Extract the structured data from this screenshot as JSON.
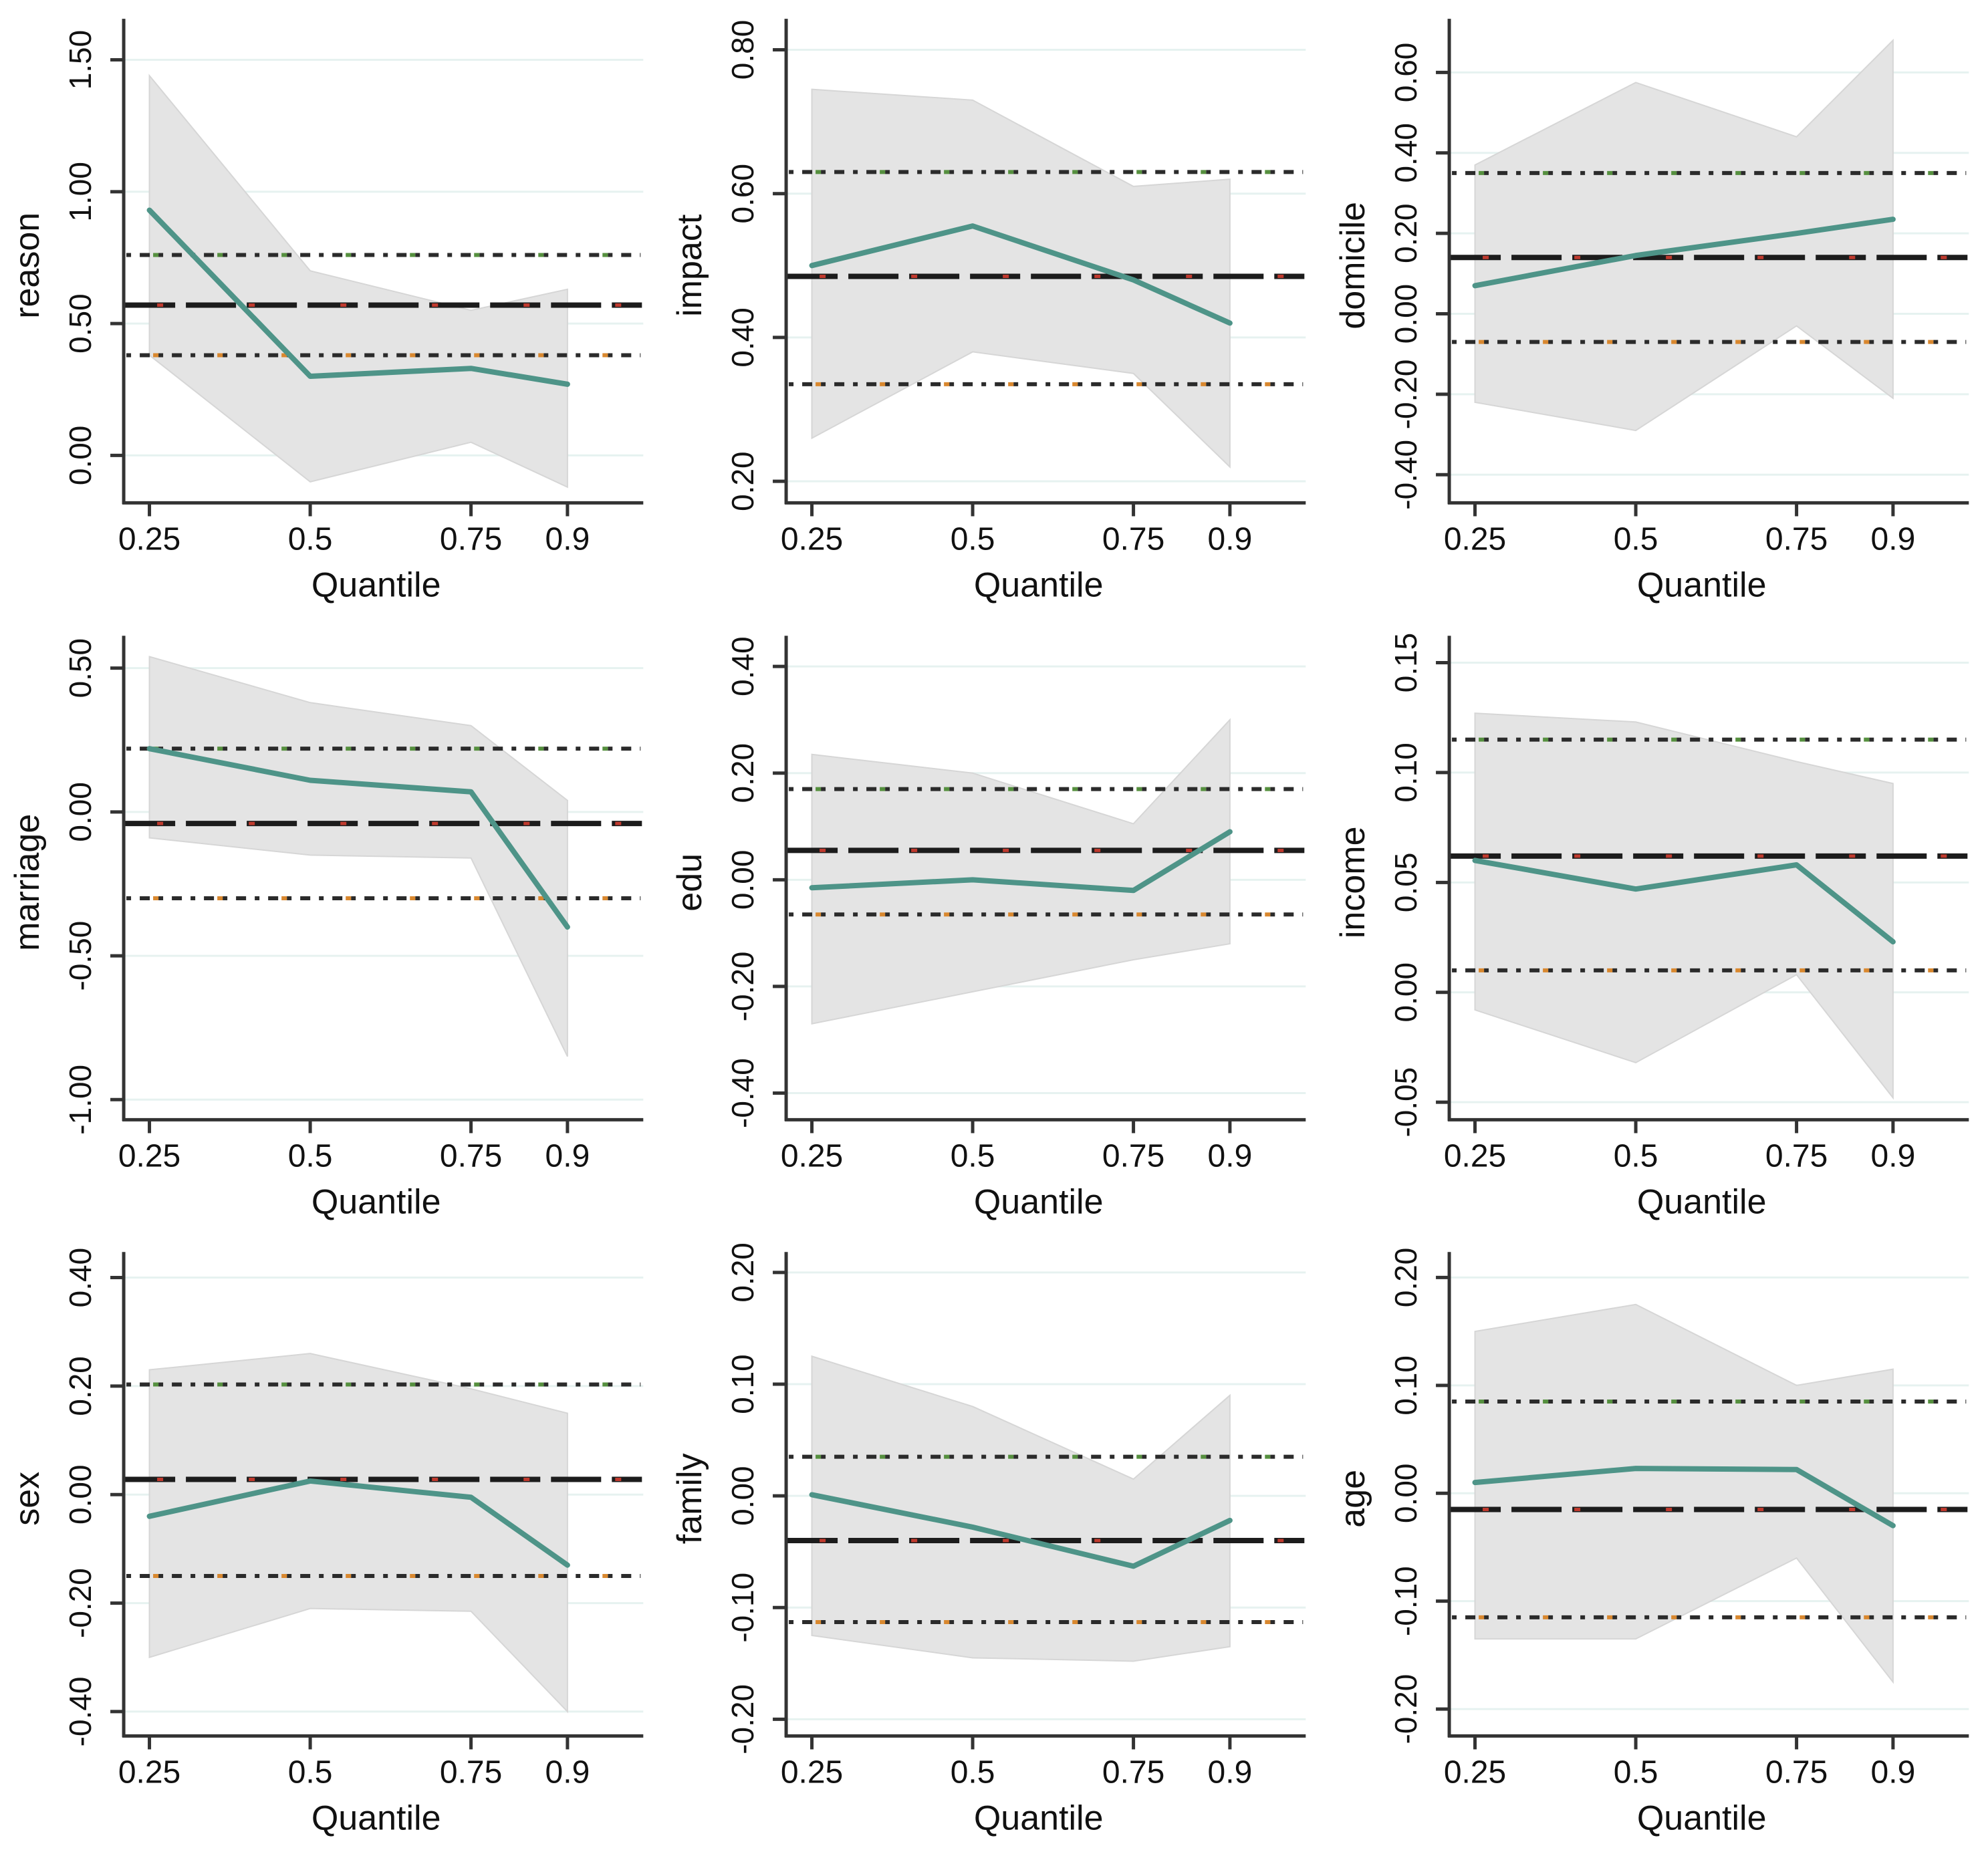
{
  "figure": {
    "kind": "3x3 grid of quantile regression coefficient plots",
    "grid_rows": 3,
    "grid_cols": 3
  },
  "styles": {
    "estimate_line_color": "#4e9488",
    "band_fill": "#e4e4e4",
    "band_stroke": "#d6d6d6",
    "ols_line_color": "#1c1c1c",
    "ols_accent_color": "#c03a2e",
    "ci_dot_color": "#2b2b2b",
    "ci_upper_accent_color": "#56903f",
    "ci_lower_accent_color": "#d9882f",
    "grid_color": "#e6f2f0",
    "axis_color": "#333333",
    "text_color": "#111111"
  },
  "chart_data": [
    {
      "type": "line",
      "ylabel": "reason",
      "xlabel": "Quantile",
      "x": [
        0.25,
        0.5,
        0.75,
        0.9
      ],
      "x_tick_labels": [
        "0.25",
        "0.5",
        "0.75",
        "0.9"
      ],
      "xlim": [
        0.21,
        0.995
      ],
      "y_ticks": [
        0.0,
        0.5,
        1.0,
        1.5
      ],
      "y_tick_labels": [
        "0.00",
        "0.50",
        "1.00",
        "1.50"
      ],
      "ylim": [
        -0.18,
        1.62
      ],
      "series": [
        {
          "name": "quantile_estimate",
          "values": [
            0.93,
            0.3,
            0.33,
            0.27
          ]
        }
      ],
      "confidence_band": {
        "lower": [
          0.38,
          -0.1,
          0.05,
          -0.12
        ],
        "upper": [
          1.44,
          0.7,
          0.55,
          0.63
        ]
      },
      "ols_estimate": 0.57,
      "ols_ci": [
        0.38,
        0.76
      ],
      "grid": true,
      "legend": "none"
    },
    {
      "type": "line",
      "ylabel": "impact",
      "xlabel": "Quantile",
      "x": [
        0.25,
        0.5,
        0.75,
        0.9
      ],
      "x_tick_labels": [
        "0.25",
        "0.5",
        "0.75",
        "0.9"
      ],
      "xlim": [
        0.21,
        0.995
      ],
      "y_ticks": [
        0.2,
        0.4,
        0.6,
        0.8
      ],
      "y_tick_labels": [
        "0.20",
        "0.40",
        "0.60",
        "0.80"
      ],
      "ylim": [
        0.17,
        0.83
      ],
      "series": [
        {
          "name": "quantile_estimate",
          "values": [
            0.5,
            0.555,
            0.48,
            0.42
          ]
        }
      ],
      "confidence_band": {
        "lower": [
          0.26,
          0.38,
          0.35,
          0.22
        ],
        "upper": [
          0.745,
          0.73,
          0.61,
          0.62
        ]
      },
      "ols_estimate": 0.485,
      "ols_ci": [
        0.335,
        0.63
      ],
      "grid": true,
      "legend": "none"
    },
    {
      "type": "line",
      "ylabel": "domicile",
      "xlabel": "Quantile",
      "x": [
        0.25,
        0.5,
        0.75,
        0.9
      ],
      "x_tick_labels": [
        "0.25",
        "0.5",
        "0.75",
        "0.9"
      ],
      "xlim": [
        0.21,
        0.995
      ],
      "y_ticks": [
        -0.4,
        -0.2,
        0.0,
        0.2,
        0.4,
        0.6
      ],
      "y_tick_labels": [
        "-0.40",
        "-0.20",
        "0.00",
        "0.20",
        "0.40",
        "0.60"
      ],
      "ylim": [
        -0.47,
        0.71
      ],
      "series": [
        {
          "name": "quantile_estimate",
          "values": [
            0.07,
            0.145,
            0.2,
            0.235
          ]
        }
      ],
      "confidence_band": {
        "lower": [
          -0.22,
          -0.29,
          -0.03,
          -0.21
        ],
        "upper": [
          0.37,
          0.575,
          0.44,
          0.68
        ]
      },
      "ols_estimate": 0.14,
      "ols_ci": [
        -0.07,
        0.35
      ],
      "grid": true,
      "legend": "none"
    },
    {
      "type": "line",
      "ylabel": "marriage",
      "xlabel": "Quantile",
      "x": [
        0.25,
        0.5,
        0.75,
        0.9
      ],
      "x_tick_labels": [
        "0.25",
        "0.5",
        "0.75",
        "0.9"
      ],
      "xlim": [
        0.21,
        0.995
      ],
      "y_ticks": [
        -1.0,
        -0.5,
        0.0,
        0.5
      ],
      "y_tick_labels": [
        "-1.00",
        "-0.50",
        "0.00",
        "0.50"
      ],
      "ylim": [
        -1.07,
        0.58
      ],
      "series": [
        {
          "name": "quantile_estimate",
          "values": [
            0.22,
            0.11,
            0.07,
            -0.4
          ]
        }
      ],
      "confidence_band": {
        "lower": [
          -0.09,
          -0.15,
          -0.16,
          -0.85
        ],
        "upper": [
          0.54,
          0.38,
          0.3,
          0.04
        ]
      },
      "ols_estimate": -0.04,
      "ols_ci": [
        -0.3,
        0.22
      ],
      "grid": true,
      "legend": "none"
    },
    {
      "type": "line",
      "ylabel": "edu",
      "xlabel": "Quantile",
      "x": [
        0.25,
        0.5,
        0.75,
        0.9
      ],
      "x_tick_labels": [
        "0.25",
        "0.5",
        "0.75",
        "0.9"
      ],
      "xlim": [
        0.21,
        0.995
      ],
      "y_ticks": [
        -0.4,
        -0.2,
        0.0,
        0.2,
        0.4
      ],
      "y_tick_labels": [
        "-0.40",
        "-0.20",
        "0.00",
        "0.20",
        "0.40"
      ],
      "ylim": [
        -0.45,
        0.44
      ],
      "series": [
        {
          "name": "quantile_estimate",
          "values": [
            -0.015,
            0.0,
            -0.02,
            0.09
          ]
        }
      ],
      "confidence_band": {
        "lower": [
          -0.27,
          -0.21,
          -0.15,
          -0.12
        ],
        "upper": [
          0.235,
          0.2,
          0.105,
          0.3
        ]
      },
      "ols_estimate": 0.055,
      "ols_ci": [
        -0.065,
        0.17
      ],
      "grid": true,
      "legend": "none"
    },
    {
      "type": "line",
      "ylabel": "income",
      "xlabel": "Quantile",
      "x": [
        0.25,
        0.5,
        0.75,
        0.9
      ],
      "x_tick_labels": [
        "0.25",
        "0.5",
        "0.75",
        "0.9"
      ],
      "xlim": [
        0.21,
        0.995
      ],
      "y_ticks": [
        -0.05,
        0.0,
        0.05,
        0.1,
        0.15
      ],
      "y_tick_labels": [
        "-0.05",
        "0.00",
        "0.05",
        "0.10",
        "0.15"
      ],
      "ylim": [
        -0.058,
        0.158
      ],
      "series": [
        {
          "name": "quantile_estimate",
          "values": [
            0.06,
            0.047,
            0.058,
            0.023
          ]
        }
      ],
      "confidence_band": {
        "lower": [
          -0.008,
          -0.032,
          0.008,
          -0.048
        ],
        "upper": [
          0.127,
          0.123,
          0.105,
          0.095
        ]
      },
      "ols_estimate": 0.062,
      "ols_ci": [
        0.01,
        0.115
      ],
      "grid": true,
      "legend": "none"
    },
    {
      "type": "line",
      "ylabel": "sex",
      "xlabel": "Quantile",
      "x": [
        0.25,
        0.5,
        0.75,
        0.9
      ],
      "x_tick_labels": [
        "0.25",
        "0.5",
        "0.75",
        "0.9"
      ],
      "xlim": [
        0.21,
        0.995
      ],
      "y_ticks": [
        -0.4,
        -0.2,
        0.0,
        0.2,
        0.4
      ],
      "y_tick_labels": [
        "-0.40",
        "-0.20",
        "0.00",
        "0.20",
        "0.40"
      ],
      "ylim": [
        -0.445,
        0.43
      ],
      "series": [
        {
          "name": "quantile_estimate",
          "values": [
            -0.04,
            0.025,
            -0.005,
            -0.13
          ]
        }
      ],
      "confidence_band": {
        "lower": [
          -0.3,
          -0.21,
          -0.215,
          -0.4
        ],
        "upper": [
          0.23,
          0.26,
          0.195,
          0.15
        ]
      },
      "ols_estimate": 0.028,
      "ols_ci": [
        -0.15,
        0.203
      ],
      "grid": true,
      "legend": "none"
    },
    {
      "type": "line",
      "ylabel": "family",
      "xlabel": "Quantile",
      "x": [
        0.25,
        0.5,
        0.75,
        0.9
      ],
      "x_tick_labels": [
        "0.25",
        "0.5",
        "0.75",
        "0.9"
      ],
      "xlim": [
        0.21,
        0.995
      ],
      "y_ticks": [
        -0.2,
        -0.1,
        0.0,
        0.1,
        0.2
      ],
      "y_tick_labels": [
        "-0.20",
        "-0.10",
        "0.00",
        "0.10",
        "0.20"
      ],
      "ylim": [
        -0.215,
        0.21
      ],
      "series": [
        {
          "name": "quantile_estimate",
          "values": [
            0.001,
            -0.028,
            -0.063,
            -0.022
          ]
        }
      ],
      "confidence_band": {
        "lower": [
          -0.125,
          -0.145,
          -0.148,
          -0.135
        ],
        "upper": [
          0.125,
          0.08,
          0.015,
          0.09
        ]
      },
      "ols_estimate": -0.04,
      "ols_ci": [
        -0.113,
        0.035
      ],
      "grid": true,
      "legend": "none"
    },
    {
      "type": "line",
      "ylabel": "age",
      "xlabel": "Quantile",
      "x": [
        0.25,
        0.5,
        0.75,
        0.9
      ],
      "x_tick_labels": [
        "0.25",
        "0.5",
        "0.75",
        "0.9"
      ],
      "xlim": [
        0.21,
        0.995
      ],
      "y_ticks": [
        -0.2,
        -0.1,
        0.0,
        0.1,
        0.2
      ],
      "y_tick_labels": [
        "-0.20",
        "-0.10",
        "0.00",
        "0.10",
        "0.20"
      ],
      "ylim": [
        -0.225,
        0.215
      ],
      "series": [
        {
          "name": "quantile_estimate",
          "values": [
            0.01,
            0.023,
            0.022,
            -0.03
          ]
        }
      ],
      "confidence_band": {
        "lower": [
          -0.135,
          -0.135,
          -0.06,
          -0.175
        ],
        "upper": [
          0.15,
          0.175,
          0.1,
          0.115
        ]
      },
      "ols_estimate": -0.015,
      "ols_ci": [
        -0.115,
        0.085
      ],
      "grid": true,
      "legend": "none"
    }
  ]
}
